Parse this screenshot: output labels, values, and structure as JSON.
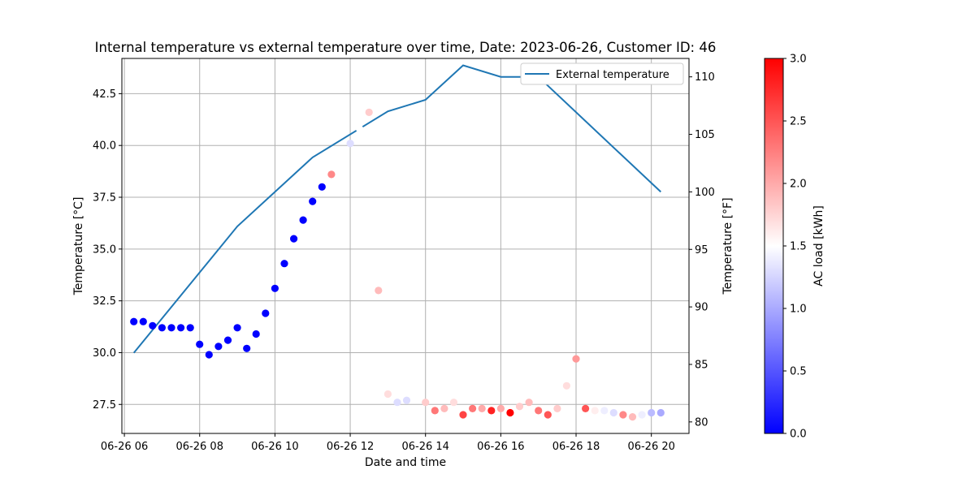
{
  "chart_data": {
    "type": "scatter",
    "title": "Internal temperature vs external temperature over time, Date: 2023-06-26, Customer ID: 46",
    "xlabel": "Date and time",
    "ylabel_left": "Temperature [°C]",
    "ylabel_right": "Temperature [°F]",
    "colorbar_label": "AC load [kWh]",
    "x_ticks": [
      {
        "label": "06-26 06",
        "t": "06:00"
      },
      {
        "label": "06-26 08",
        "t": "08:00"
      },
      {
        "label": "06-26 10",
        "t": "10:00"
      },
      {
        "label": "06-26 12",
        "t": "12:00"
      },
      {
        "label": "06-26 14",
        "t": "14:00"
      },
      {
        "label": "06-26 16",
        "t": "16:00"
      },
      {
        "label": "06-26 18",
        "t": "18:00"
      },
      {
        "label": "06-26 20",
        "t": "20:00"
      }
    ],
    "xlim": [
      "05:56",
      "21:00"
    ],
    "ylim_left": [
      26.1,
      44.2
    ],
    "y_ticks_left": [
      "27.5",
      "30.0",
      "32.5",
      "35.0",
      "37.5",
      "40.0",
      "42.5"
    ],
    "ylim_right": [
      79.0,
      111.6
    ],
    "y_ticks_right": [
      "80",
      "85",
      "90",
      "95",
      "100",
      "105",
      "110"
    ],
    "colorbar_range": [
      0,
      3
    ],
    "colorbar_ticks": [
      "0.0",
      "0.5",
      "1.0",
      "1.5",
      "2.0",
      "2.5",
      "3.0"
    ],
    "colormap": [
      "#0000ff",
      "#ffffff",
      "#ff0000"
    ],
    "grid": true,
    "legend_position": "top-right",
    "series": [
      {
        "name": "External temperature",
        "kind": "line",
        "axis": "right",
        "color": "#1f77b4",
        "points": [
          {
            "t": "06:15",
            "y": 86
          },
          {
            "t": "09:00",
            "y": 97
          },
          {
            "t": "11:00",
            "y": 103
          },
          {
            "t": "13:00",
            "y": 107
          },
          {
            "t": "14:00",
            "y": 108
          },
          {
            "t": "15:00",
            "y": 111
          },
          {
            "t": "16:00",
            "y": 110
          },
          {
            "t": "17:00",
            "y": 110
          },
          {
            "t": "20:15",
            "y": 100
          }
        ]
      },
      {
        "name": "Internal temperature",
        "kind": "scatter",
        "axis": "left",
        "points": [
          {
            "t": "06:15",
            "y": 31.5,
            "c": 0.0
          },
          {
            "t": "06:30",
            "y": 31.5,
            "c": 0.0
          },
          {
            "t": "06:45",
            "y": 31.3,
            "c": 0.0
          },
          {
            "t": "07:00",
            "y": 31.2,
            "c": 0.0
          },
          {
            "t": "07:15",
            "y": 31.2,
            "c": 0.0
          },
          {
            "t": "07:30",
            "y": 31.2,
            "c": 0.0
          },
          {
            "t": "07:45",
            "y": 31.2,
            "c": 0.0
          },
          {
            "t": "08:00",
            "y": 30.4,
            "c": 0.0
          },
          {
            "t": "08:15",
            "y": 29.9,
            "c": 0.0
          },
          {
            "t": "08:30",
            "y": 30.3,
            "c": 0.0
          },
          {
            "t": "08:45",
            "y": 30.6,
            "c": 0.0
          },
          {
            "t": "09:00",
            "y": 31.2,
            "c": 0.0
          },
          {
            "t": "09:15",
            "y": 30.2,
            "c": 0.0
          },
          {
            "t": "09:30",
            "y": 30.9,
            "c": 0.0
          },
          {
            "t": "09:45",
            "y": 31.9,
            "c": 0.0
          },
          {
            "t": "10:00",
            "y": 33.1,
            "c": 0.0
          },
          {
            "t": "10:15",
            "y": 34.3,
            "c": 0.0
          },
          {
            "t": "10:30",
            "y": 35.5,
            "c": 0.0
          },
          {
            "t": "10:45",
            "y": 36.4,
            "c": 0.0
          },
          {
            "t": "11:00",
            "y": 37.3,
            "c": 0.0
          },
          {
            "t": "11:15",
            "y": 38.0,
            "c": 0.0
          },
          {
            "t": "11:30",
            "y": 38.6,
            "c": 2.2
          },
          {
            "t": "11:45",
            "y": 39.4,
            "c": 1.5
          },
          {
            "t": "12:00",
            "y": 40.1,
            "c": 1.3
          },
          {
            "t": "12:15",
            "y": 40.8,
            "c": 1.5
          },
          {
            "t": "12:30",
            "y": 41.6,
            "c": 1.8
          },
          {
            "t": "12:45",
            "y": 33.0,
            "c": 1.9
          },
          {
            "t": "13:00",
            "y": 28.0,
            "c": 1.7
          },
          {
            "t": "13:15",
            "y": 27.6,
            "c": 1.3
          },
          {
            "t": "13:30",
            "y": 27.7,
            "c": 1.3
          },
          {
            "t": "14:00",
            "y": 27.6,
            "c": 1.8
          },
          {
            "t": "14:15",
            "y": 27.2,
            "c": 2.3
          },
          {
            "t": "14:30",
            "y": 27.3,
            "c": 1.9
          },
          {
            "t": "14:45",
            "y": 27.6,
            "c": 1.7
          },
          {
            "t": "15:00",
            "y": 27.0,
            "c": 2.6
          },
          {
            "t": "15:15",
            "y": 27.3,
            "c": 2.3
          },
          {
            "t": "15:30",
            "y": 27.3,
            "c": 2.0
          },
          {
            "t": "15:45",
            "y": 27.2,
            "c": 2.8
          },
          {
            "t": "16:00",
            "y": 27.3,
            "c": 2.0
          },
          {
            "t": "16:15",
            "y": 27.1,
            "c": 3.0
          },
          {
            "t": "16:30",
            "y": 27.4,
            "c": 1.8
          },
          {
            "t": "16:45",
            "y": 27.6,
            "c": 1.9
          },
          {
            "t": "17:00",
            "y": 27.2,
            "c": 2.3
          },
          {
            "t": "17:15",
            "y": 27.0,
            "c": 2.5
          },
          {
            "t": "17:30",
            "y": 27.3,
            "c": 1.8
          },
          {
            "t": "17:45",
            "y": 28.4,
            "c": 1.7
          },
          {
            "t": "18:00",
            "y": 29.7,
            "c": 2.1
          },
          {
            "t": "18:15",
            "y": 27.3,
            "c": 2.5
          },
          {
            "t": "18:30",
            "y": 27.2,
            "c": 1.6
          },
          {
            "t": "18:45",
            "y": 27.2,
            "c": 1.4
          },
          {
            "t": "19:00",
            "y": 27.1,
            "c": 1.3
          },
          {
            "t": "19:15",
            "y": 27.0,
            "c": 2.2
          },
          {
            "t": "19:30",
            "y": 26.9,
            "c": 1.9
          },
          {
            "t": "19:45",
            "y": 27.0,
            "c": 1.4
          },
          {
            "t": "20:00",
            "y": 27.1,
            "c": 1.1
          },
          {
            "t": "20:15",
            "y": 27.1,
            "c": 1.0
          }
        ]
      }
    ]
  }
}
